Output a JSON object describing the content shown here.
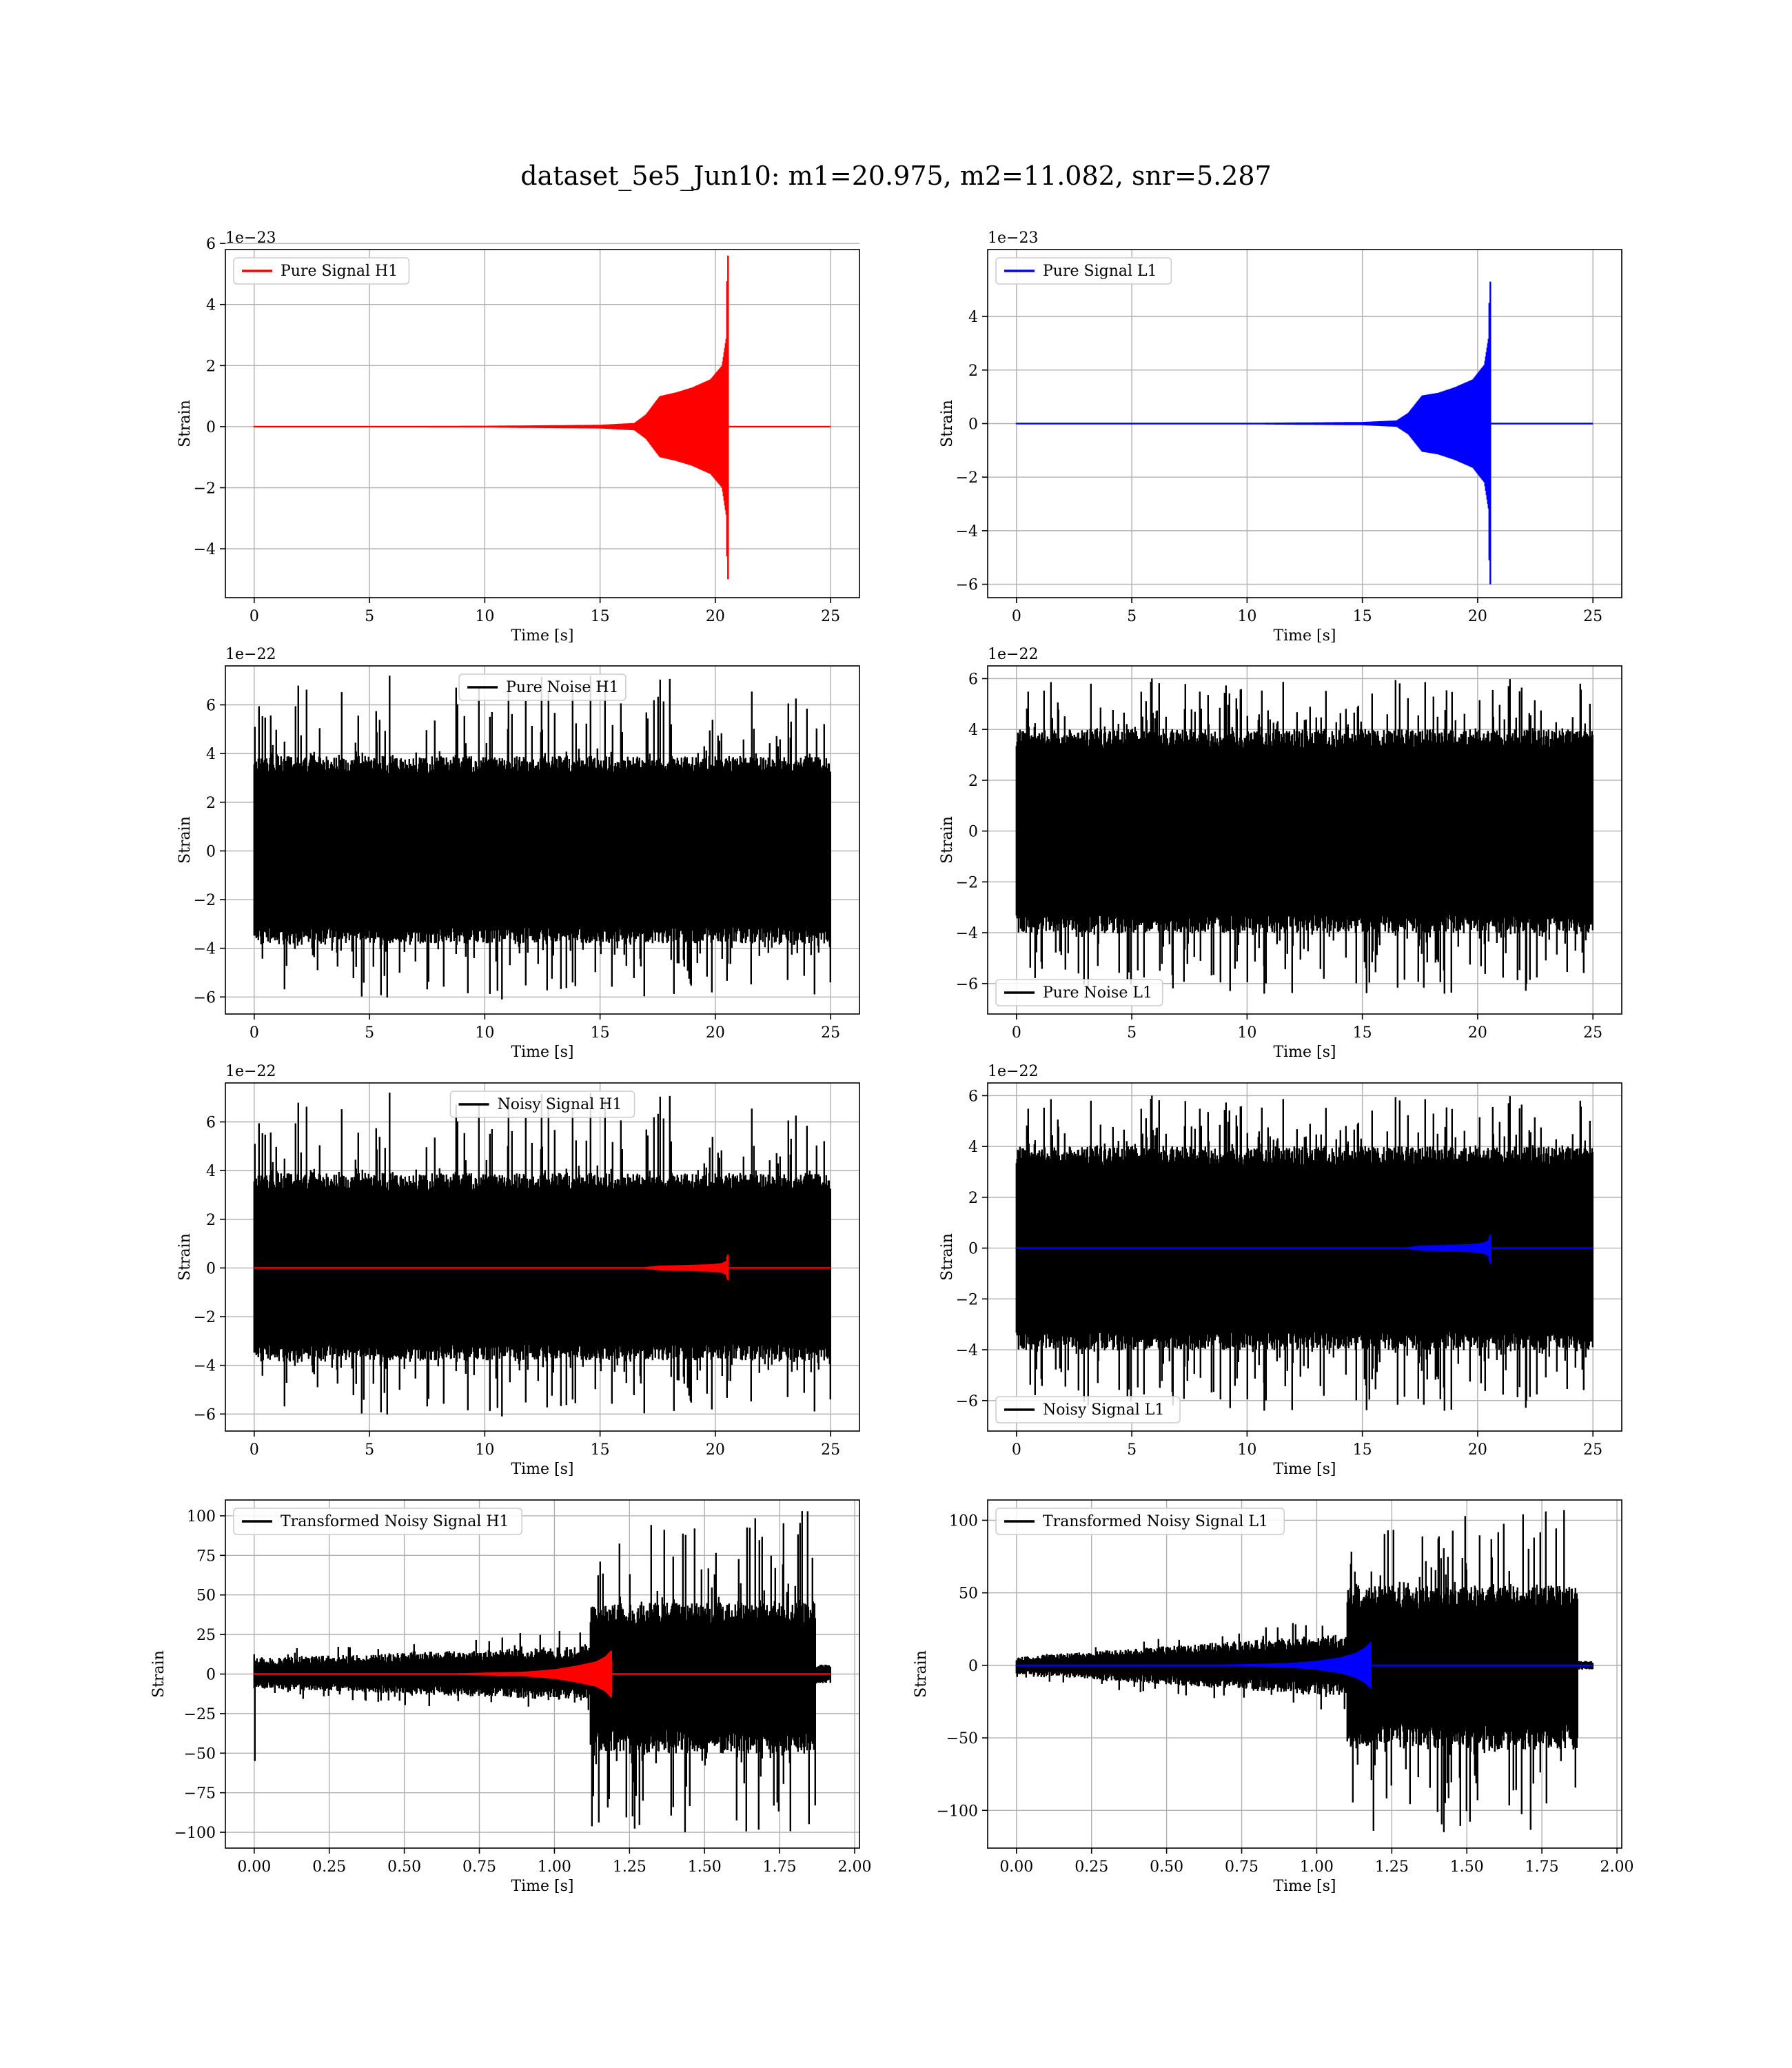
{
  "figure": {
    "title": "dataset_5e5_Jun10: m1=20.975, m2=11.082, snr=5.287"
  },
  "colors": {
    "h1_signal": "#ff0000",
    "l1_signal": "#0000ff",
    "noise": "#000000",
    "grid": "#b0b0b0"
  },
  "chart_data": [
    {
      "id": "signal-h1",
      "type": "line",
      "position": "row 1, left",
      "xlabel": "Time [s]",
      "ylabel": "Strain",
      "offset_text": "1e−23",
      "xlim": [
        -1.25,
        26.25
      ],
      "ylim": [
        -5.6,
        5.8
      ],
      "xticks": [
        0,
        5,
        10,
        15,
        20,
        25
      ],
      "xtick_labels": [
        "0",
        "5",
        "10",
        "15",
        "20",
        "25"
      ],
      "yticks": [
        -4,
        -2,
        0,
        2,
        4,
        6
      ],
      "ytick_labels": [
        "−4",
        "−2",
        "0",
        "2",
        "4",
        "6"
      ],
      "grid": true,
      "legend_placement": "top-left",
      "series": [
        {
          "name": "Pure Signal H1",
          "kind": "chirp",
          "color": "#ff0000",
          "x_start": 0,
          "x_end": 25,
          "merger_time": 20.55,
          "envelope": {
            "t": [
              0,
              10,
              15,
              16.5,
              17.0,
              17.6,
              18.3,
              19.0,
              19.8,
              20.3,
              20.5
            ],
            "amp": [
              0.02,
              0.03,
              0.06,
              0.12,
              0.4,
              1.0,
              1.12,
              1.28,
              1.55,
              2.0,
              3.0
            ]
          },
          "peak_high": 5.6,
          "peak_low": -5.0
        }
      ]
    },
    {
      "id": "signal-l1",
      "type": "line",
      "position": "row 1, right",
      "xlabel": "Time [s]",
      "ylabel": "Strain",
      "offset_text": "1e−23",
      "xlim": [
        -1.25,
        26.25
      ],
      "ylim": [
        -6.5,
        6.5
      ],
      "xticks": [
        0,
        5,
        10,
        15,
        20,
        25
      ],
      "xtick_labels": [
        "0",
        "5",
        "10",
        "15",
        "20",
        "25"
      ],
      "yticks": [
        -6,
        -4,
        -2,
        0,
        2,
        4
      ],
      "ytick_labels": [
        "−6",
        "−4",
        "−2",
        "0",
        "2",
        "4"
      ],
      "grid": true,
      "legend_placement": "top-left",
      "series": [
        {
          "name": "Pure Signal L1",
          "kind": "chirp",
          "color": "#0000ff",
          "x_start": 0,
          "x_end": 25,
          "merger_time": 20.55,
          "envelope": {
            "t": [
              0,
              10,
              15,
              16.5,
              17.0,
              17.6,
              18.3,
              19.0,
              19.8,
              20.3,
              20.5
            ],
            "amp": [
              0.02,
              0.03,
              0.06,
              0.12,
              0.4,
              1.05,
              1.15,
              1.35,
              1.65,
              2.2,
              3.3
            ]
          },
          "peak_high": 5.3,
          "peak_low": -6.0
        }
      ]
    },
    {
      "id": "noise-h1",
      "type": "line",
      "position": "row 2, left",
      "xlabel": "Time [s]",
      "ylabel": "Strain",
      "offset_text": "1e−22",
      "xlim": [
        -1.25,
        26.25
      ],
      "ylim": [
        -6.7,
        7.6
      ],
      "xticks": [
        0,
        5,
        10,
        15,
        20,
        25
      ],
      "xtick_labels": [
        "0",
        "5",
        "10",
        "15",
        "20",
        "25"
      ],
      "yticks": [
        -6,
        -4,
        -2,
        0,
        2,
        4,
        6
      ],
      "ytick_labels": [
        "−6",
        "−4",
        "−2",
        "0",
        "2",
        "4",
        "6"
      ],
      "grid": true,
      "legend_placement": "upper center",
      "series": [
        {
          "name": "Pure Noise H1",
          "kind": "noise",
          "color": "#000000",
          "x_start": 0,
          "x_end": 25,
          "band_high": 3.9,
          "band_low": -3.8,
          "spike_high": 7.2,
          "spike_low": -6.1,
          "seed": 11
        }
      ]
    },
    {
      "id": "noise-l1",
      "type": "line",
      "position": "row 2, right",
      "xlabel": "Time [s]",
      "ylabel": "Strain",
      "offset_text": "1e−22",
      "xlim": [
        -1.25,
        26.25
      ],
      "ylim": [
        -7.2,
        6.5
      ],
      "xticks": [
        0,
        5,
        10,
        15,
        20,
        25
      ],
      "xtick_labels": [
        "0",
        "5",
        "10",
        "15",
        "20",
        "25"
      ],
      "yticks": [
        -6,
        -4,
        -2,
        0,
        2,
        4,
        6
      ],
      "ytick_labels": [
        "−6",
        "−4",
        "−2",
        "0",
        "2",
        "4",
        "6"
      ],
      "grid": true,
      "legend_placement": "bottom-left",
      "series": [
        {
          "name": "Pure Noise L1",
          "kind": "noise",
          "color": "#000000",
          "x_start": 0,
          "x_end": 25,
          "band_high": 4.0,
          "band_low": -4.0,
          "spike_high": 6.0,
          "spike_low": -6.4,
          "seed": 23
        }
      ]
    },
    {
      "id": "noisy-h1",
      "type": "line",
      "position": "row 3, left",
      "xlabel": "Time [s]",
      "ylabel": "Strain",
      "offset_text": "1e−22",
      "xlim": [
        -1.25,
        26.25
      ],
      "ylim": [
        -6.7,
        7.6
      ],
      "xticks": [
        0,
        5,
        10,
        15,
        20,
        25
      ],
      "xtick_labels": [
        "0",
        "5",
        "10",
        "15",
        "20",
        "25"
      ],
      "yticks": [
        -6,
        -4,
        -2,
        0,
        2,
        4,
        6
      ],
      "ytick_labels": [
        "−6",
        "−4",
        "−2",
        "0",
        "2",
        "4",
        "6"
      ],
      "grid": true,
      "legend_placement": "upper center",
      "series": [
        {
          "name": "Noisy Signal H1",
          "kind": "noise",
          "color": "#000000",
          "x_start": 0,
          "x_end": 25,
          "band_high": 3.9,
          "band_low": -3.8,
          "spike_high": 7.2,
          "spike_low": -6.1,
          "seed": 11
        },
        {
          "kind": "chirp",
          "color": "#ff0000",
          "x_start": 0,
          "x_end": 25,
          "merger_time": 20.55,
          "envelope": {
            "t": [
              0,
              15,
              16.5,
              17.0,
              17.6,
              18.3,
              19.0,
              19.8,
              20.3,
              20.5
            ],
            "amp": [
              0.0,
              0.006,
              0.012,
              0.04,
              0.1,
              0.112,
              0.128,
              0.155,
              0.2,
              0.3
            ]
          },
          "peak_high": 0.56,
          "peak_low": -0.5
        }
      ]
    },
    {
      "id": "noisy-l1",
      "type": "line",
      "position": "row 3, right",
      "xlabel": "Time [s]",
      "ylabel": "Strain",
      "offset_text": "1e−22",
      "xlim": [
        -1.25,
        26.25
      ],
      "ylim": [
        -7.2,
        6.5
      ],
      "xticks": [
        0,
        5,
        10,
        15,
        20,
        25
      ],
      "xtick_labels": [
        "0",
        "5",
        "10",
        "15",
        "20",
        "25"
      ],
      "yticks": [
        -6,
        -4,
        -2,
        0,
        2,
        4,
        6
      ],
      "ytick_labels": [
        "−6",
        "−4",
        "−2",
        "0",
        "2",
        "4",
        "6"
      ],
      "grid": true,
      "legend_placement": "bottom-left",
      "series": [
        {
          "name": "Noisy Signal L1",
          "kind": "noise",
          "color": "#000000",
          "x_start": 0,
          "x_end": 25,
          "band_high": 4.0,
          "band_low": -4.0,
          "spike_high": 6.0,
          "spike_low": -6.4,
          "seed": 23
        },
        {
          "kind": "chirp",
          "color": "#0000ff",
          "x_start": 0,
          "x_end": 25,
          "merger_time": 20.55,
          "envelope": {
            "t": [
              0,
              15,
              16.5,
              17.0,
              17.6,
              18.3,
              19.0,
              19.8,
              20.3,
              20.5
            ],
            "amp": [
              0.0,
              0.006,
              0.012,
              0.04,
              0.105,
              0.115,
              0.135,
              0.165,
              0.22,
              0.33
            ]
          },
          "peak_high": 0.53,
          "peak_low": -0.6
        }
      ]
    },
    {
      "id": "transformed-h1",
      "type": "line",
      "position": "row 4, left",
      "xlabel": "Time [s]",
      "ylabel": "Strain",
      "offset_text": "",
      "xlim": [
        -0.096,
        2.016
      ],
      "ylim": [
        -110,
        110
      ],
      "xticks": [
        0,
        0.25,
        0.5,
        0.75,
        1.0,
        1.25,
        1.5,
        1.75,
        2.0
      ],
      "xtick_labels": [
        "0.00",
        "0.25",
        "0.50",
        "0.75",
        "1.00",
        "1.25",
        "1.50",
        "1.75",
        "2.00"
      ],
      "yticks": [
        -100,
        -75,
        -50,
        -25,
        0,
        25,
        50,
        75,
        100
      ],
      "ytick_labels": [
        "−100",
        "−75",
        "−50",
        "−25",
        "0",
        "25",
        "50",
        "75",
        "100"
      ],
      "grid": true,
      "legend_placement": "top-left",
      "series": [
        {
          "name": "Transformed Noisy Signal H1",
          "kind": "transformed",
          "color": "#000000",
          "x_start": 0,
          "x_end": 1.92,
          "jump_time": 1.12,
          "end_time": 1.87,
          "early_high": 10,
          "early_low": -9,
          "early_growth": 8,
          "late_high": 45,
          "late_low": -50,
          "spike_high": 103,
          "spike_low": -100,
          "start_dip": -55,
          "tail_amp": 6,
          "seed": 37
        },
        {
          "kind": "chirp",
          "color": "#ff0000",
          "x_start": 0,
          "x_end": 1.92,
          "merger_time": 1.19,
          "envelope": {
            "t": [
              0,
              0.7,
              0.9,
              1.0,
              1.08,
              1.14,
              1.17,
              1.19
            ],
            "amp": [
              0.2,
              0.6,
              1.5,
              3.0,
              5.5,
              8.0,
              11.0,
              15.0
            ]
          },
          "peak_high": 8,
          "peak_low": -12
        }
      ]
    },
    {
      "id": "transformed-l1",
      "type": "line",
      "position": "row 4, right",
      "xlabel": "Time [s]",
      "ylabel": "Strain",
      "offset_text": "",
      "xlim": [
        -0.096,
        2.016
      ],
      "ylim": [
        -126,
        114
      ],
      "xticks": [
        0,
        0.25,
        0.5,
        0.75,
        1.0,
        1.25,
        1.5,
        1.75,
        2.0
      ],
      "xtick_labels": [
        "0.00",
        "0.25",
        "0.50",
        "0.75",
        "1.00",
        "1.25",
        "1.50",
        "1.75",
        "2.00"
      ],
      "yticks": [
        -100,
        -50,
        0,
        50,
        100
      ],
      "ytick_labels": [
        "−100",
        "−50",
        "0",
        "50",
        "100"
      ],
      "grid": true,
      "legend_placement": "top-left",
      "series": [
        {
          "name": "Transformed Noisy Signal L1",
          "kind": "transformed",
          "color": "#000000",
          "x_start": 0,
          "x_end": 1.92,
          "jump_time": 1.1,
          "end_time": 1.87,
          "early_high": 6,
          "early_low": -6,
          "early_growth": 16,
          "late_high": 55,
          "late_low": -58,
          "spike_high": 107,
          "spike_low": -115,
          "start_dip": -8,
          "tail_amp": 3,
          "seed": 53
        },
        {
          "kind": "chirp",
          "color": "#0000ff",
          "x_start": 0,
          "x_end": 1.92,
          "merger_time": 1.18,
          "envelope": {
            "t": [
              0,
              0.7,
              0.9,
              1.0,
              1.08,
              1.13,
              1.16,
              1.18
            ],
            "amp": [
              0.2,
              0.6,
              1.5,
              3.0,
              5.5,
              8.5,
              12.0,
              16.0
            ]
          },
          "peak_high": 16,
          "peak_low": -12
        }
      ]
    }
  ]
}
